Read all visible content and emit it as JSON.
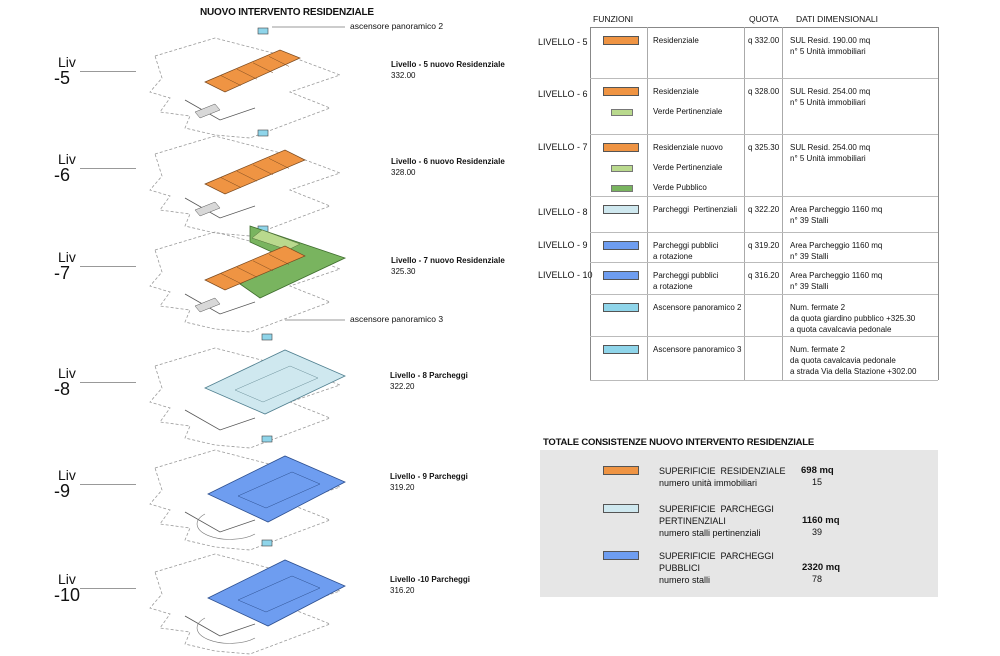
{
  "title": "NUOVO INTERVENTO RESIDENZIALE",
  "colors": {
    "residenziale": "#ef9443",
    "verde_pertinenziale": "#b9d98d",
    "verde_pubblico": "#79b45f",
    "parcheggi_pertinenziali": "#cfe8ef",
    "parcheggi_pubblici": "#6e9df0",
    "ascensore": "#8fd5ea",
    "summary_bg": "#e6e6e6"
  },
  "labels": {
    "ascensore_top": "ascensore panoramico 2",
    "ascensore_mid": "ascensore panoramico 3"
  },
  "levels": [
    {
      "liv": "Liv",
      "num": "-5",
      "name": "Livello - 5 nuovo Residenziale",
      "quota": "332.00"
    },
    {
      "liv": "Liv",
      "num": "-6",
      "name": "Livello - 6 nuovo Residenziale",
      "quota": "328.00"
    },
    {
      "liv": "Liv",
      "num": "-7",
      "name": "Livello - 7 nuovo Residenziale",
      "quota": "325.30"
    },
    {
      "liv": "Liv",
      "num": "-8",
      "name": "Livello - 8 Parcheggi",
      "quota": "322.20"
    },
    {
      "liv": "Liv",
      "num": "-9",
      "name": "Livello - 9 Parcheggi",
      "quota": "319.20"
    },
    {
      "liv": "Liv",
      "num": "-10",
      "name": "Livello -10 Parcheggi",
      "quota": "316.20"
    }
  ],
  "table": {
    "headers": {
      "funzioni": "FUNZIONI",
      "quota": "QUOTA",
      "dati": "DATI DIMENSIONALI"
    },
    "rows": [
      {
        "level": "LIVELLO - 5",
        "items": [
          {
            "color": "#ef9443",
            "label": "Residenziale"
          }
        ],
        "quota": "q 332.00",
        "dati": [
          "SUL Resid.   190.00 mq",
          "n° 5 Unità immobiliari"
        ]
      },
      {
        "level": "LIVELLO - 6",
        "items": [
          {
            "color": "#ef9443",
            "label": "Residenziale"
          },
          {
            "color": "#b9d98d",
            "label": "Verde Pertinenziale"
          }
        ],
        "quota": "q 328.00",
        "dati": [
          "SUL Resid.   254.00 mq",
          "n° 5 Unità immobiliari"
        ]
      },
      {
        "level": "LIVELLO - 7",
        "items": [
          {
            "color": "#ef9443",
            "label": "Residenziale nuovo"
          },
          {
            "color": "#b9d98d",
            "label": "Verde Pertinenziale"
          },
          {
            "color": "#79b45f",
            "label": "Verde Pubblico"
          }
        ],
        "quota": "q 325.30",
        "dati": [
          "SUL Resid.   254.00 mq",
          "n° 5 Unità immobiliari"
        ]
      },
      {
        "level": "LIVELLO - 8",
        "items": [
          {
            "color": "#cfe8ef",
            "label": "Parcheggi  Pertinenziali"
          }
        ],
        "quota": "q 322.20",
        "dati": [
          "Area Parcheggio 1160 mq",
          "n° 39 Stalli"
        ]
      },
      {
        "level": "LIVELLO - 9",
        "items": [
          {
            "color": "#6e9df0",
            "label": "Parcheggi pubblici\na rotazione"
          }
        ],
        "quota": "q 319.20",
        "dati": [
          "Area Parcheggio 1160 mq",
          "n° 39 Stalli"
        ]
      },
      {
        "level": "LIVELLO - 10",
        "items": [
          {
            "color": "#6e9df0",
            "label": "Parcheggi pubblici\na rotazione"
          }
        ],
        "quota": "q 316.20",
        "dati": [
          "Area Parcheggio 1160 mq",
          "n° 39 Stalli"
        ]
      },
      {
        "level": "",
        "items": [
          {
            "color": "#8fd5ea",
            "label": "Ascensore panoramico 2"
          }
        ],
        "quota": "",
        "dati": [
          "Num. fermate 2",
          "da quota giardino pubblico +325.30",
          "a  quota cavalcavia pedonale"
        ]
      },
      {
        "level": "",
        "items": [
          {
            "color": "#8fd5ea",
            "label": "Ascensore panoramico 3"
          }
        ],
        "quota": "",
        "dati": [
          "Num. fermate 2",
          "da quota cavalcavia pedonale",
          "a   strada Via della Stazione +302.00"
        ]
      }
    ]
  },
  "summary": {
    "title": "TOTALE CONSISTENZE NUOVO INTERVENTO  RESIDENZIALE",
    "items": [
      {
        "color": "#ef9443",
        "label": "SUPERIFICIE  RESIDENZIALE",
        "value": "698 mq",
        "sub": "numero unità immobiliari",
        "sub_value": "15"
      },
      {
        "color": "#cfe8ef",
        "label": "SUPERIFICIE  PARCHEGGI\nPERTINENZIALI",
        "value": "1160 mq",
        "sub": "numero stalli  pertinenziali",
        "sub_value": "39"
      },
      {
        "color": "#6e9df0",
        "label": "SUPERIFICIE  PARCHEGGI\nPUBBLICI",
        "value": "2320 mq",
        "sub": "numero stalli",
        "sub_value": "78"
      }
    ]
  }
}
